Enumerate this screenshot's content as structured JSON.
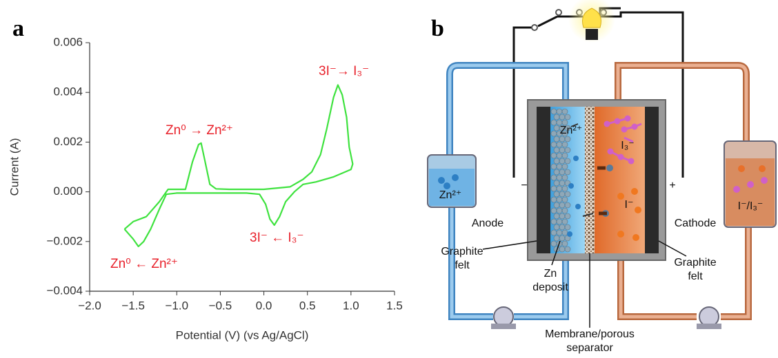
{
  "panel_labels": [
    "a",
    "b"
  ],
  "chart_data": {
    "type": "line",
    "x_label": "Potential (V) (vs Ag/AgCl)",
    "y_label": "Current (A)",
    "color": "#3ee23e",
    "x": [
      -1.6,
      -1.5,
      -1.35,
      -1.2,
      -1.12,
      -1.1,
      -1.0,
      -0.9,
      -0.82,
      -0.75,
      -0.72,
      -0.68,
      -0.62,
      -0.55,
      -0.4,
      0.0,
      0.3,
      0.45,
      0.55,
      0.65,
      0.72,
      0.8,
      0.85,
      0.9,
      0.95,
      0.98,
      1.02,
      1.0,
      0.8,
      0.6,
      0.45,
      0.35,
      0.25,
      0.18,
      0.12,
      0.07,
      0.02,
      -0.05,
      -0.2,
      -0.6,
      -1.0,
      -1.12,
      -1.2,
      -1.3,
      -1.38,
      -1.44,
      -1.5,
      -1.6
    ],
    "values": [
      -0.0015,
      -0.0012,
      -0.001,
      -0.0004,
      0.0,
      0.0001,
      0.0001,
      0.0001,
      0.0012,
      0.0019,
      0.00196,
      0.0013,
      0.0003,
      0.00012,
      0.0001,
      0.0001,
      0.0002,
      0.0005,
      0.0008,
      0.0015,
      0.0025,
      0.0038,
      0.0043,
      0.0039,
      0.003,
      0.0018,
      0.00112,
      0.0009,
      0.0006,
      0.0004,
      0.0003,
      0.0,
      -0.0004,
      -0.001,
      -0.00134,
      -0.0011,
      -0.0005,
      -0.0001,
      -5e-05,
      -5e-05,
      -5e-05,
      -0.0001,
      -0.0007,
      -0.0015,
      -0.002,
      -0.0022,
      -0.0019,
      -0.0015
    ],
    "xlim": [
      -2.0,
      1.5
    ],
    "ylim": [
      -0.004,
      0.006
    ],
    "xticks": [
      {
        "value": -2.0,
        "label": "−2.0"
      },
      {
        "value": -1.5,
        "label": "−1.5"
      },
      {
        "value": -1.0,
        "label": "−1.0"
      },
      {
        "value": -0.5,
        "label": "−0.5"
      },
      {
        "value": 0.0,
        "label": "0.0"
      },
      {
        "value": 0.5,
        "label": "0.5"
      },
      {
        "value": 1.0,
        "label": "1.0"
      },
      {
        "value": 1.5,
        "label": "1.5"
      }
    ],
    "yticks": [
      {
        "value": -0.004,
        "label": "−0.004"
      },
      {
        "value": -0.002,
        "label": "−0.002"
      },
      {
        "value": 0.0,
        "label": "0.000"
      },
      {
        "value": 0.002,
        "label": "0.002"
      },
      {
        "value": 0.004,
        "label": "0.004"
      },
      {
        "value": 0.006,
        "label": "0.006"
      }
    ],
    "annotations": [
      "3I⁻→ I₃⁻",
      "Zn⁰ → Zn²⁺",
      "3I⁻ ← I₃⁻",
      "Zn⁰ ← Zn²⁺"
    ]
  },
  "diagram": {
    "labels": [
      {
        "lines": [
          "Zn²⁺"
        ]
      },
      {
        "lines": [
          "Zn²⁺"
        ]
      },
      {
        "lines": [
          "I₃⁻"
        ]
      },
      {
        "lines": [
          "I⁻"
        ]
      },
      {
        "lines": [
          "I⁻/I₃⁻"
        ]
      },
      {
        "lines": [
          "Anode"
        ]
      },
      {
        "lines": [
          "Cathode"
        ]
      },
      {
        "lines": [
          "Graphite",
          "felt"
        ]
      },
      {
        "lines": [
          "Zn",
          "deposit"
        ]
      },
      {
        "lines": [
          "Graphite",
          "felt"
        ]
      },
      {
        "lines": [
          "Membrane/porous",
          "separator"
        ]
      },
      {
        "lines": [
          "−"
        ]
      },
      {
        "lines": [
          "+"
        ]
      }
    ]
  }
}
